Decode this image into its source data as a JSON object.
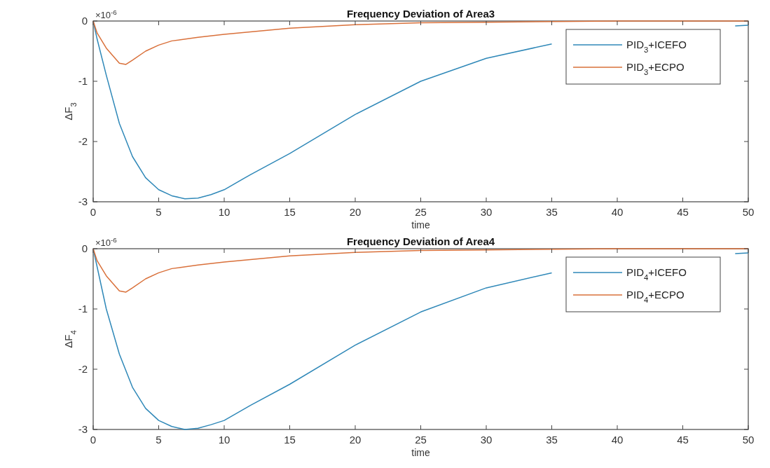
{
  "chart_data": [
    {
      "type": "line",
      "title": "Frequency Deviation of Area3",
      "xlabel": "time",
      "ylabel": "ΔF$_{3}$",
      "annotations": [
        "×10$^{-6}$"
      ],
      "xlim": [
        0,
        50
      ],
      "ylim": [
        -3,
        0
      ],
      "xticks": [
        0,
        5,
        10,
        15,
        20,
        25,
        30,
        35,
        40,
        45,
        50
      ],
      "yticks": [
        -3,
        -2,
        -1,
        0
      ],
      "legend": "top right",
      "grid": false,
      "series": [
        {
          "name": "PID$_{3}$+ICEFO",
          "color": "#2f88b8",
          "x": [
            0,
            0.3,
            1,
            2,
            3,
            4,
            5,
            6,
            7,
            8,
            9,
            10,
            12,
            15,
            20,
            25,
            30,
            35,
            40,
            49,
            50
          ],
          "values": [
            0,
            -0.3,
            -0.9,
            -1.7,
            -2.25,
            -2.6,
            -2.8,
            -2.9,
            -2.95,
            -2.94,
            -2.88,
            -2.8,
            -2.55,
            -2.2,
            -1.55,
            -1.0,
            -0.62,
            -0.38,
            null,
            -0.08,
            -0.07
          ]
        },
        {
          "name": "PID$_{3}$+ECPO",
          "color": "#d9703a",
          "x": [
            0,
            0.3,
            1,
            2,
            2.5,
            3,
            4,
            5,
            6,
            8,
            10,
            15,
            20,
            25,
            30,
            40,
            50
          ],
          "values": [
            0,
            -0.2,
            -0.45,
            -0.7,
            -0.72,
            -0.65,
            -0.5,
            -0.4,
            -0.33,
            -0.27,
            -0.22,
            -0.12,
            -0.06,
            -0.03,
            -0.02,
            0,
            0
          ]
        }
      ]
    },
    {
      "type": "line",
      "title": "Frequency Deviation of Area4",
      "xlabel": "time",
      "ylabel": "ΔF$_{4}$",
      "annotations": [
        "×10$^{-6}$"
      ],
      "xlim": [
        0,
        50
      ],
      "ylim": [
        -3,
        0
      ],
      "xticks": [
        0,
        5,
        10,
        15,
        20,
        25,
        30,
        35,
        40,
        45,
        50
      ],
      "yticks": [
        -3,
        -2,
        -1,
        0
      ],
      "legend": "top right",
      "grid": false,
      "series": [
        {
          "name": "PID$_{4}$+ICEFO",
          "color": "#2f88b8",
          "x": [
            0,
            0.5,
            1,
            2,
            3,
            4,
            5,
            6,
            7,
            8,
            9,
            10,
            12,
            15,
            20,
            25,
            30,
            35,
            40,
            49,
            50
          ],
          "values": [
            0,
            -0.5,
            -1.0,
            -1.75,
            -2.3,
            -2.65,
            -2.85,
            -2.95,
            -3.0,
            -2.98,
            -2.92,
            -2.85,
            -2.6,
            -2.25,
            -1.6,
            -1.05,
            -0.65,
            -0.4,
            null,
            -0.08,
            -0.07
          ]
        },
        {
          "name": "PID$_{4}$+ECPO",
          "color": "#d9703a",
          "x": [
            0,
            0.3,
            1,
            2,
            2.5,
            3,
            4,
            5,
            6,
            8,
            10,
            15,
            20,
            25,
            30,
            40,
            50
          ],
          "values": [
            0,
            -0.2,
            -0.45,
            -0.7,
            -0.72,
            -0.65,
            -0.5,
            -0.4,
            -0.33,
            -0.27,
            -0.22,
            -0.12,
            -0.06,
            -0.03,
            -0.02,
            0,
            0
          ]
        }
      ]
    }
  ]
}
